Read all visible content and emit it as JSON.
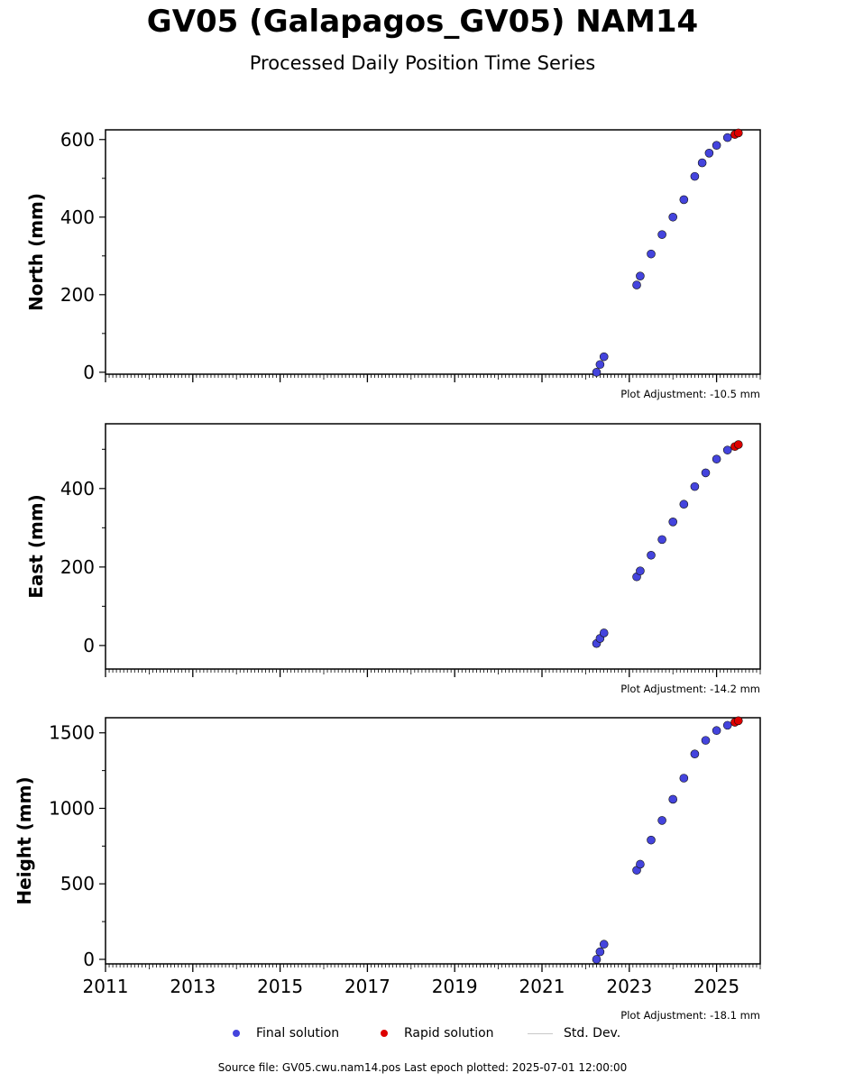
{
  "header": {
    "title": "GV05 (Galapagos_GV05) NAM14",
    "subtitle": "Processed Daily Position Time Series"
  },
  "legend": {
    "final_label": "Final solution",
    "rapid_label": "Rapid solution",
    "std_label": "Std. Dev."
  },
  "footer": {
    "text": "Source file: GV05.cwu.nam14.pos  Last epoch plotted: 2025-07-01 12:00:00"
  },
  "colors": {
    "final": "#4444dd",
    "rapid": "#dd0000",
    "std": "#c8c8c8",
    "edge": "#111111"
  },
  "chart_data": [
    {
      "type": "scatter",
      "ylabel": "North (mm)",
      "note": "Plot Adjustment: -10.5 mm",
      "xlim": [
        2011.0,
        2026.0
      ],
      "ylim": [
        -5,
        625
      ],
      "yticks": [
        0,
        200,
        400,
        600
      ],
      "final": {
        "x": [
          2022.25,
          2022.33,
          2022.42,
          2023.17,
          2023.25,
          2023.5,
          2023.75,
          2024.0,
          2024.25,
          2024.5,
          2024.67,
          2024.83,
          2025.0,
          2025.25
        ],
        "y": [
          0,
          20,
          40,
          225,
          248,
          305,
          355,
          400,
          445,
          505,
          540,
          565,
          585,
          605
        ]
      },
      "rapid": {
        "x": [
          2025.42,
          2025.5
        ],
        "y": [
          613,
          617
        ]
      }
    },
    {
      "type": "scatter",
      "ylabel": "East (mm)",
      "note": "Plot Adjustment: -14.2 mm",
      "xlim": [
        2011.0,
        2026.0
      ],
      "ylim": [
        -60,
        565
      ],
      "yticks": [
        0,
        200,
        400
      ],
      "final": {
        "x": [
          2022.25,
          2022.33,
          2022.42,
          2023.17,
          2023.25,
          2023.5,
          2023.75,
          2024.0,
          2024.25,
          2024.5,
          2024.75,
          2025.0,
          2025.25
        ],
        "y": [
          5,
          18,
          32,
          175,
          190,
          230,
          270,
          315,
          360,
          405,
          440,
          475,
          498
        ]
      },
      "rapid": {
        "x": [
          2025.42,
          2025.5
        ],
        "y": [
          507,
          512
        ]
      }
    },
    {
      "type": "scatter",
      "ylabel": "Height (mm)",
      "note": "Plot Adjustment: -18.1 mm",
      "xlim": [
        2011.0,
        2026.0
      ],
      "ylim": [
        -30,
        1600
      ],
      "yticks": [
        0,
        500,
        1000,
        1500
      ],
      "xticks": [
        2011,
        2013,
        2015,
        2017,
        2019,
        2021,
        2023,
        2025
      ],
      "final": {
        "x": [
          2022.25,
          2022.33,
          2022.42,
          2023.17,
          2023.25,
          2023.5,
          2023.75,
          2024.0,
          2024.25,
          2024.5,
          2024.75,
          2025.0,
          2025.25
        ],
        "y": [
          0,
          50,
          100,
          590,
          630,
          790,
          920,
          1060,
          1200,
          1360,
          1450,
          1515,
          1550
        ]
      },
      "rapid": {
        "x": [
          2025.42,
          2025.5
        ],
        "y": [
          1570,
          1580
        ]
      }
    }
  ]
}
